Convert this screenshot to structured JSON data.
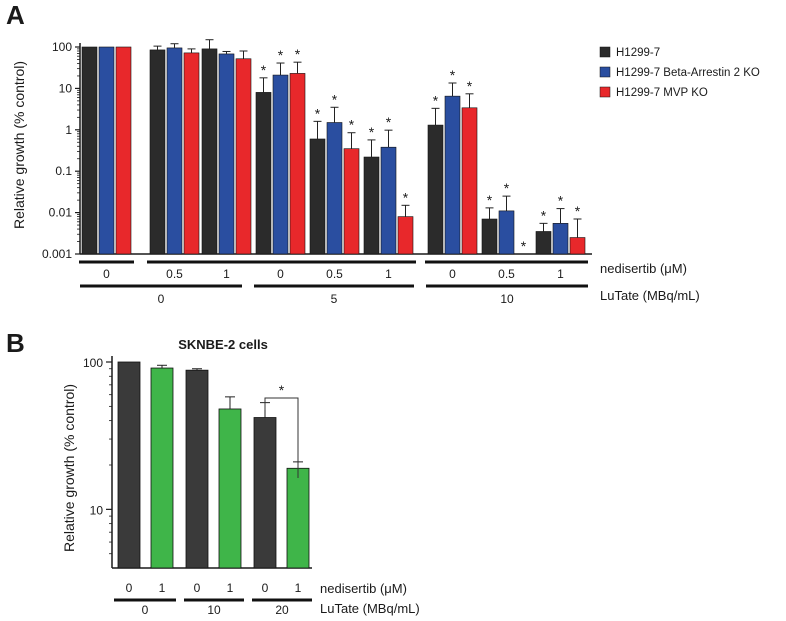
{
  "chart_data": [
    {
      "panel": "A",
      "type": "bar",
      "title": "",
      "ylabel": "Relative growth (% control)",
      "yscale": "log",
      "ylim": [
        0.001,
        100
      ],
      "yticks": [
        "0.001",
        "0.01",
        "0.1",
        "1",
        "10",
        "100"
      ],
      "grid": false,
      "legend_position": "right",
      "series": [
        {
          "name": "H1299-7",
          "color": "#2b2b2b",
          "values": [
            100,
            85,
            90,
            8,
            0.6,
            0.22,
            1.3,
            0.007,
            0.0035
          ],
          "errors": [
            0,
            20,
            60,
            10,
            1.0,
            0.35,
            2.0,
            0.006,
            0.002
          ],
          "significant": [
            false,
            false,
            false,
            true,
            true,
            true,
            true,
            true,
            true
          ]
        },
        {
          "name": "H1299-7 Beta-Arrestin 2 KO",
          "color": "#2a4ea0",
          "values": [
            100,
            95,
            68,
            21,
            1.5,
            0.38,
            6.5,
            0.011,
            0.0055
          ],
          "errors": [
            0,
            25,
            10,
            20,
            2.0,
            0.6,
            7.0,
            0.014,
            0.007
          ],
          "significant": [
            false,
            false,
            false,
            true,
            true,
            true,
            true,
            true,
            true
          ]
        },
        {
          "name": "H1299-7 MVP KO",
          "color": "#e8282b",
          "values": [
            100,
            72,
            52,
            23,
            0.35,
            0.008,
            3.4,
            0.001,
            0.0025
          ],
          "errors": [
            0,
            18,
            28,
            20,
            0.5,
            0.007,
            4.0,
            0,
            0.0045
          ],
          "significant": [
            false,
            false,
            false,
            true,
            true,
            true,
            true,
            true,
            true
          ]
        }
      ],
      "groups": {
        "nedisertib": {
          "label": "nedisertib (μM)",
          "values": [
            "0",
            "0.5",
            "1",
            "0",
            "0.5",
            "1",
            "0",
            "0.5",
            "1"
          ]
        },
        "lutate": {
          "label": "LuTate (MBq/mL)",
          "values": [
            "0",
            "5",
            "10"
          ]
        }
      }
    },
    {
      "panel": "B",
      "type": "bar",
      "title": "SKNBE-2 cells",
      "ylabel": "Relative growth (% control)",
      "yscale": "log",
      "ylim": [
        4,
        100
      ],
      "yticks": [
        "10",
        "100"
      ],
      "grid": false,
      "values": [
        100,
        91,
        88,
        48,
        42,
        19
      ],
      "errors": [
        0,
        4,
        2,
        10,
        11,
        2
      ],
      "colors": [
        "#3a3a3a",
        "#3fb549",
        "#3a3a3a",
        "#3fb549",
        "#3a3a3a",
        "#3fb549"
      ],
      "significance": [
        {
          "between": [
            4,
            5
          ],
          "label": "*"
        }
      ],
      "groups": {
        "nedisertib": {
          "label": "nedisertib (μM)",
          "values": [
            "0",
            "1",
            "0",
            "1",
            "0",
            "1"
          ]
        },
        "lutate": {
          "label": "LuTate (MBq/mL)",
          "values": [
            "0",
            "10",
            "20"
          ]
        }
      }
    }
  ],
  "panel_labels": [
    "A",
    "B"
  ],
  "star_colors": [
    "#1a1a1a",
    "#2a78c8",
    "#e8282b"
  ],
  "star_symbol": "*"
}
